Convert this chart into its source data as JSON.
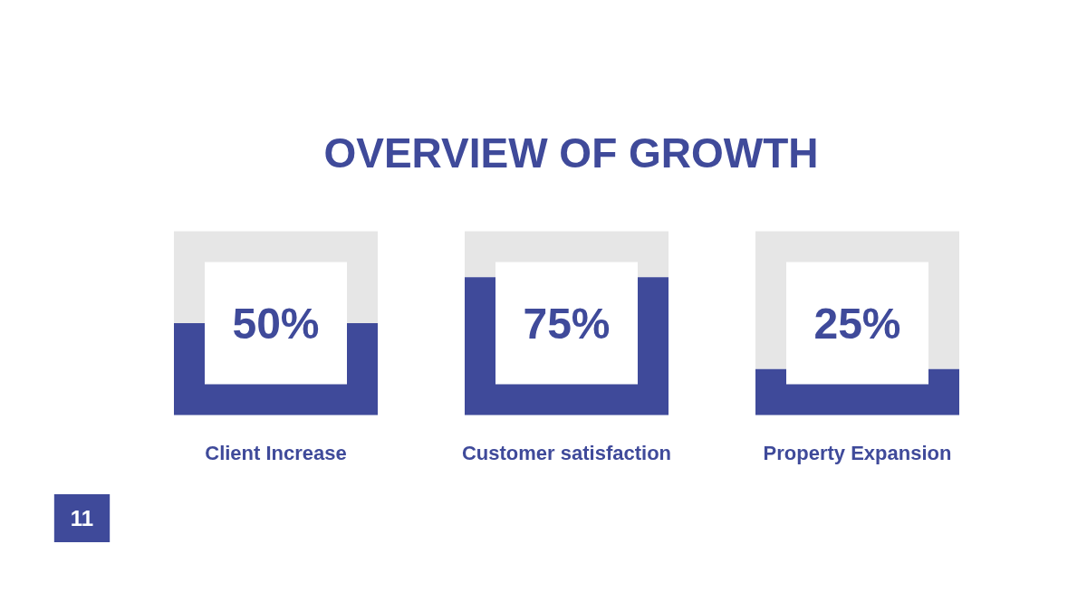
{
  "chart_data": {
    "type": "other",
    "title": "OVERVIEW OF GROWTH",
    "categories": [
      "Client Increase",
      "Customer satisfaction",
      "Property Expansion"
    ],
    "values": [
      50,
      75,
      25
    ],
    "value_labels": [
      "50%",
      "75%",
      "25%"
    ],
    "color": "#3f4a9a",
    "annotations": [
      "11"
    ]
  }
}
